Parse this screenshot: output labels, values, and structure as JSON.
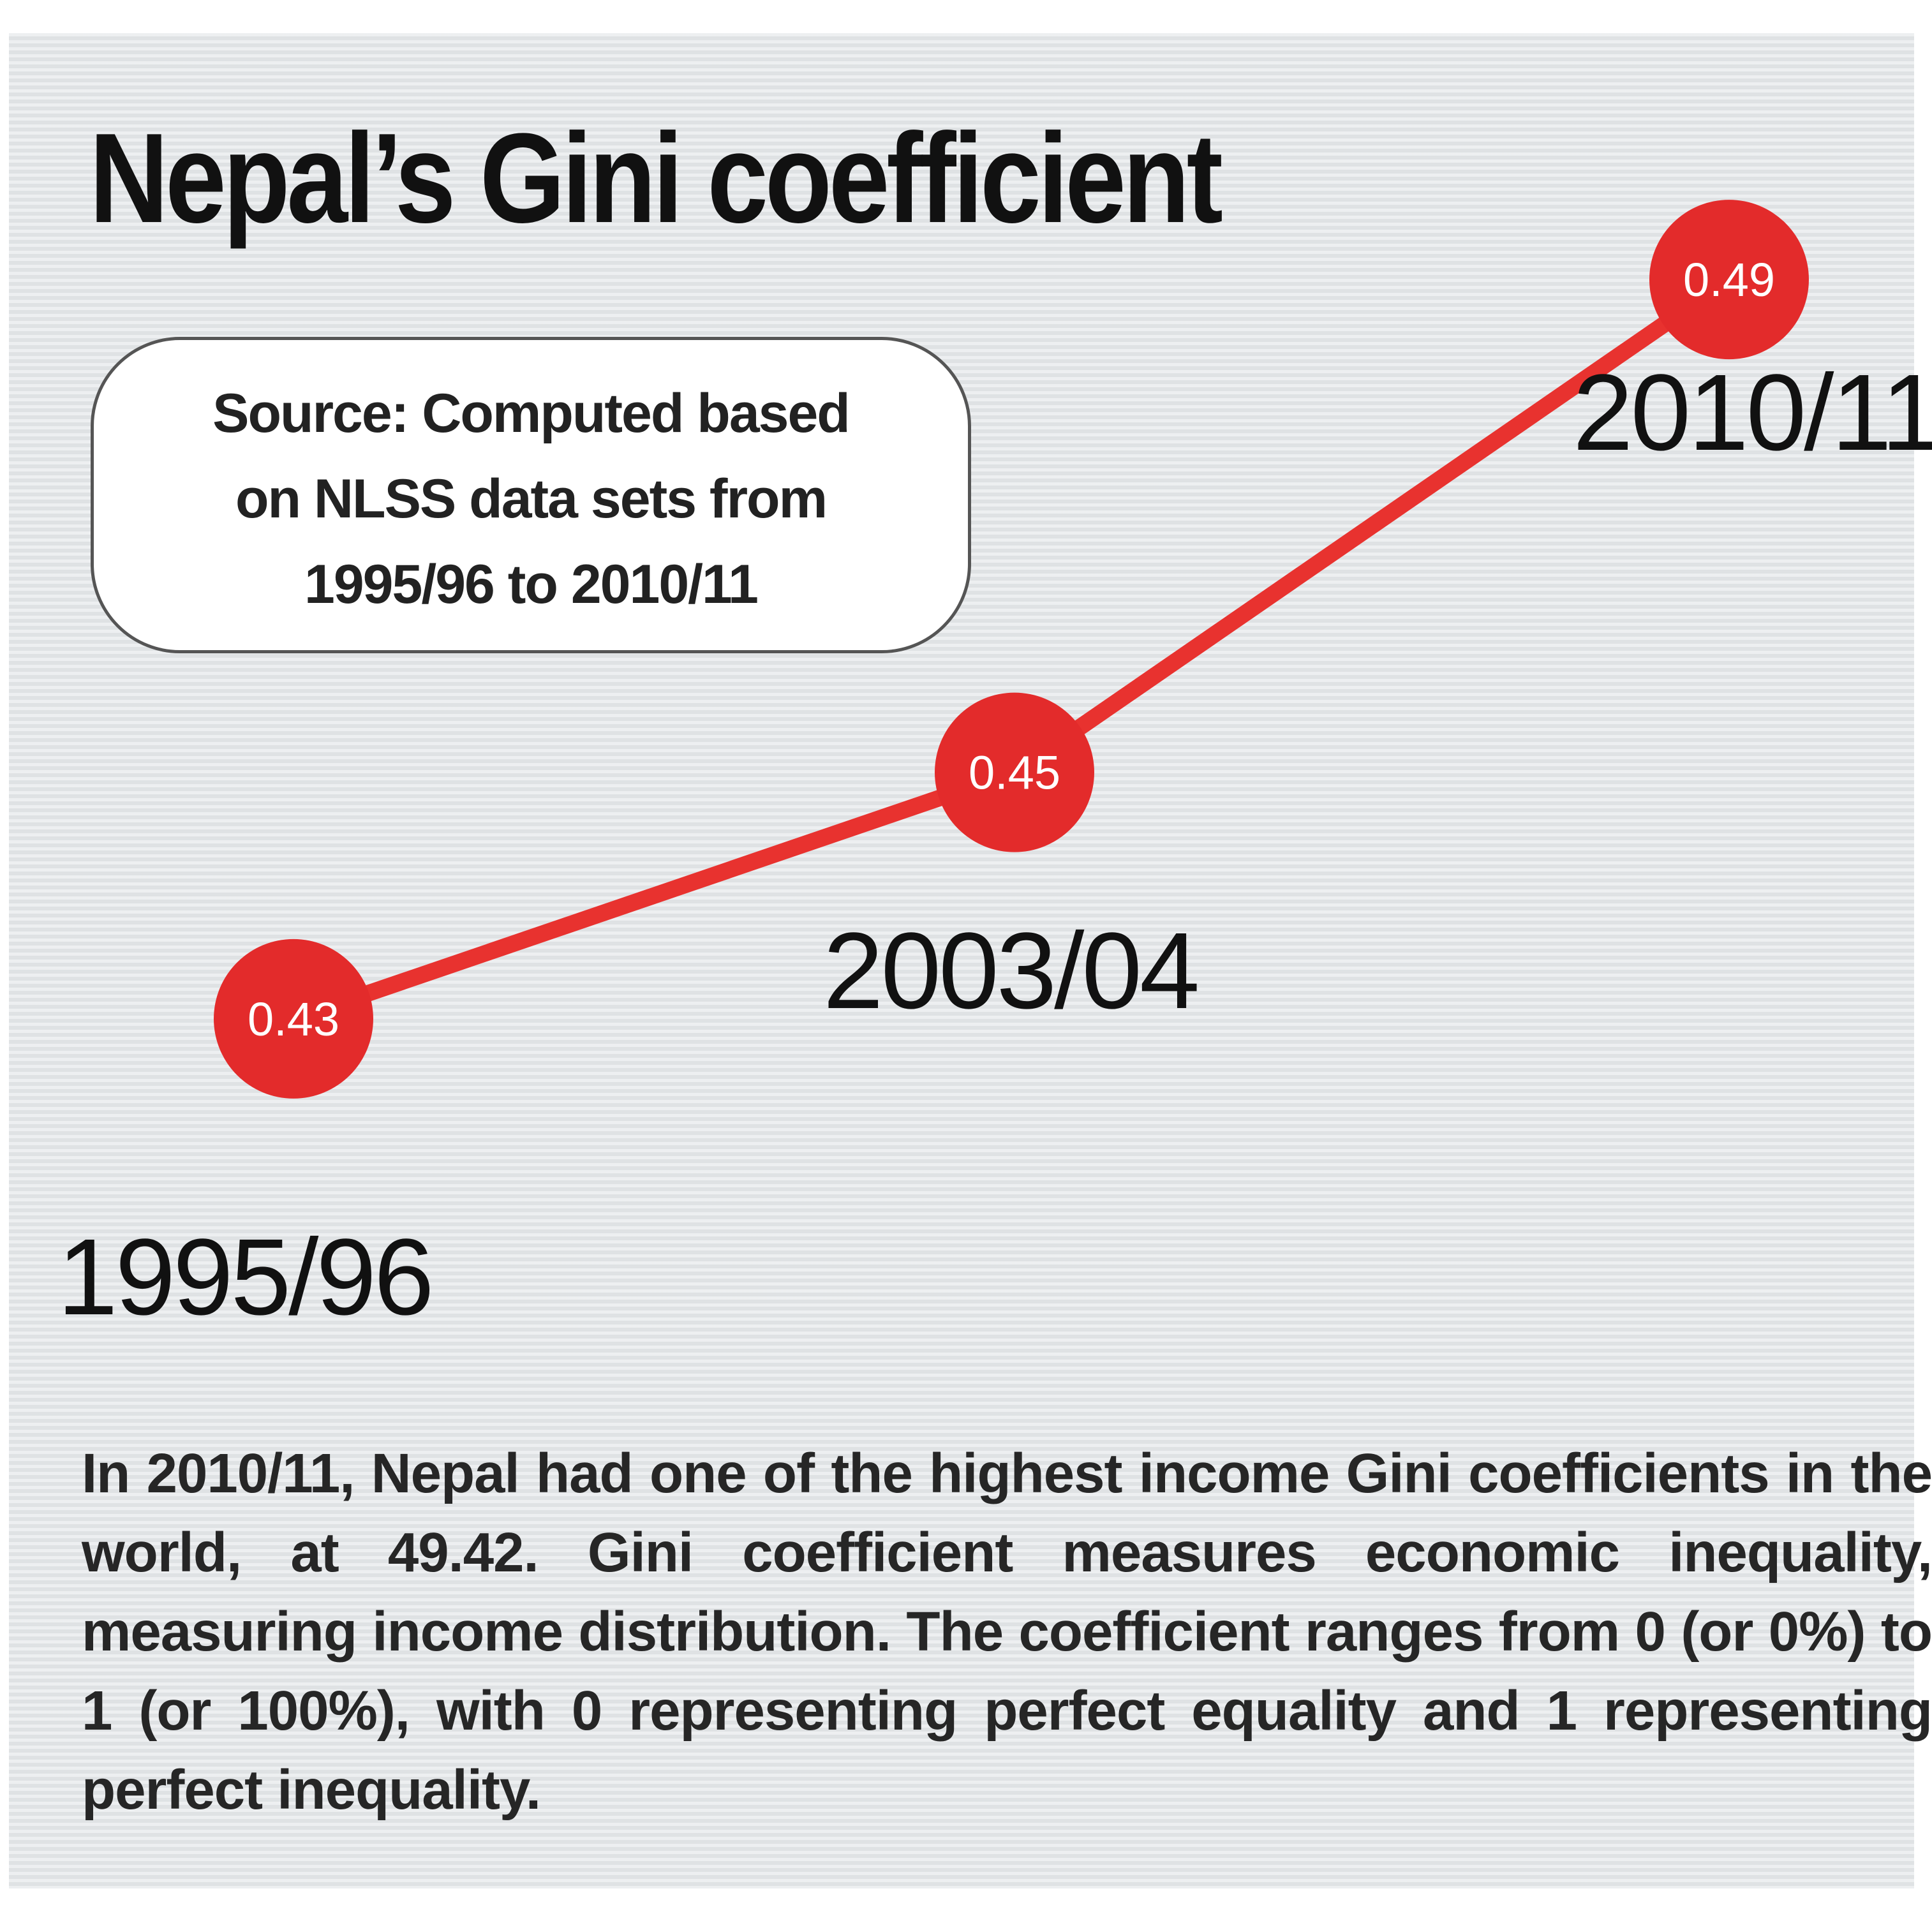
{
  "chart_data": {
    "type": "line",
    "title": "Nepal’s Gini coefficient",
    "source_lines": [
      "Source: Computed based",
      "on NLSS data sets from",
      "1995/96 to 2010/11"
    ],
    "categories": [
      "1995/96",
      "2003/04",
      "2010/11"
    ],
    "values": [
      0.43,
      0.45,
      0.49
    ],
    "value_labels": [
      "0.43",
      "0.45",
      "0.49"
    ],
    "ylim": [
      0.42,
      0.5
    ],
    "grid": false,
    "legend": "none",
    "description": "In 2010/11, Nepal had one of the highest income Gini coefficients in the world, at 49.42. Gini coefficient measures economic inequality, measuring income distribution. The coefficient ranges from 0 (or 0%) to 1 (or 100%), with 0 representing perfect equality and 1 representing perfect inequality."
  },
  "colors": {
    "line": "#e8322f",
    "marker": "#e32b2b",
    "panel": "#e4e7e9"
  }
}
